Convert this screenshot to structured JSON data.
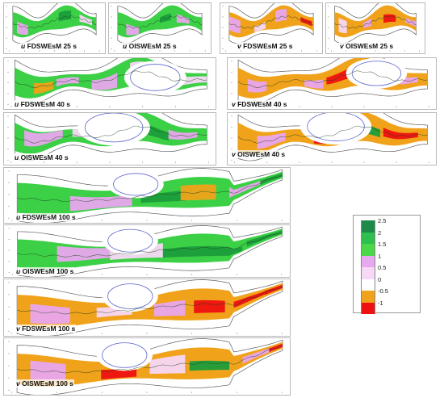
{
  "panels": [
    {
      "id": "p1",
      "var": "u",
      "rest": "FDSWEsM 25 s",
      "palette": "u"
    },
    {
      "id": "p2",
      "var": "u",
      "rest": "OISWEsM 25 s",
      "palette": "u"
    },
    {
      "id": "p3",
      "var": "v",
      "rest": "FDSWEsM 25 s",
      "palette": "v"
    },
    {
      "id": "p4",
      "var": "v",
      "rest": "OISWEsM 25 s",
      "palette": "v"
    },
    {
      "id": "p5",
      "var": "u",
      "rest": "FDSWEsM 40 s",
      "palette": "u"
    },
    {
      "id": "p6",
      "var": "v",
      "rest": "FDSWEsM 40 s",
      "palette": "v"
    },
    {
      "id": "p7",
      "var": "u",
      "rest": "OISWEsM 40 s",
      "palette": "u"
    },
    {
      "id": "p8",
      "var": "v",
      "rest": "OISWEsM 40 s",
      "palette": "v"
    },
    {
      "id": "p9",
      "var": "u",
      "rest": "FDSWEsM 100 s",
      "palette": "u"
    },
    {
      "id": "p10",
      "var": "u",
      "rest": "OISWEsM 100 s",
      "palette": "u"
    },
    {
      "id": "p11",
      "var": "v",
      "rest": "FDSWEsM 100 s",
      "palette": "v"
    },
    {
      "id": "p12",
      "var": "v",
      "rest": "OISWEsM 100 s",
      "palette": "v"
    }
  ],
  "legend": {
    "levels": [
      "2.5",
      "2",
      "1.5",
      "1",
      "0.5",
      "0",
      "-0.5",
      "-1"
    ],
    "colors": [
      "#1e8a4a",
      "#2fbf4f",
      "#4ad84a",
      "#e6a8ee",
      "#f7d8f7",
      "#ffffff",
      "#f0a21a",
      "#ee1111"
    ]
  },
  "palettes": {
    "u": {
      "base": "#3cd046",
      "dark": "#1b9d3b",
      "pink": "#e8a6ee",
      "light": "#f6d7f6",
      "orange": "#f0a21a",
      "red": "#ee1111"
    },
    "v": {
      "base": "#f0a21a",
      "dark": "#1b9d3b",
      "pink": "#e8a6ee",
      "light": "#f6d7f6",
      "orange": "#f0a21a",
      "red": "#ee1111"
    }
  }
}
